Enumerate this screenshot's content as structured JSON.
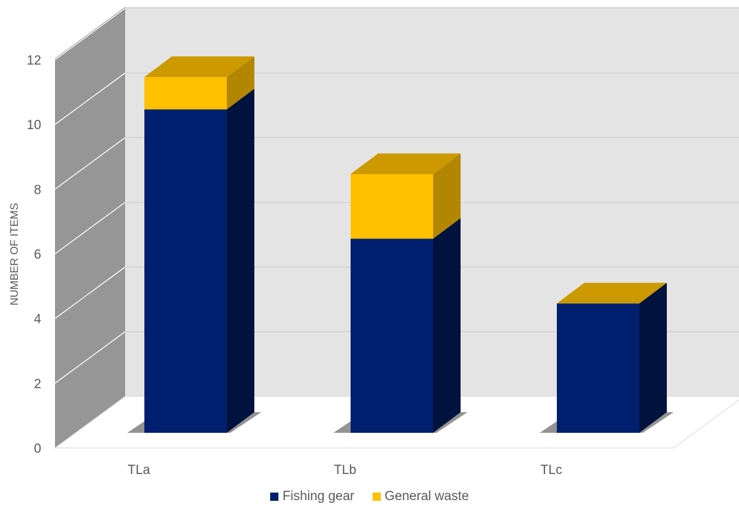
{
  "chart_data": {
    "type": "bar",
    "stacked": true,
    "style": "3d",
    "categories": [
      "TLa",
      "TLb",
      "TLc"
    ],
    "series": [
      {
        "name": "Fishing gear",
        "values": [
          10,
          6,
          4
        ],
        "color": "#00206F"
      },
      {
        "name": "General waste",
        "values": [
          1,
          2,
          0
        ],
        "color": "#FFC000"
      }
    ],
    "title": "",
    "xlabel": "",
    "ylabel": "NUMBER OF ITEMS",
    "ylim": [
      0,
      12
    ],
    "yticks": [
      0,
      2,
      4,
      6,
      8,
      10,
      12
    ],
    "grid": true,
    "legend": "bottom"
  }
}
